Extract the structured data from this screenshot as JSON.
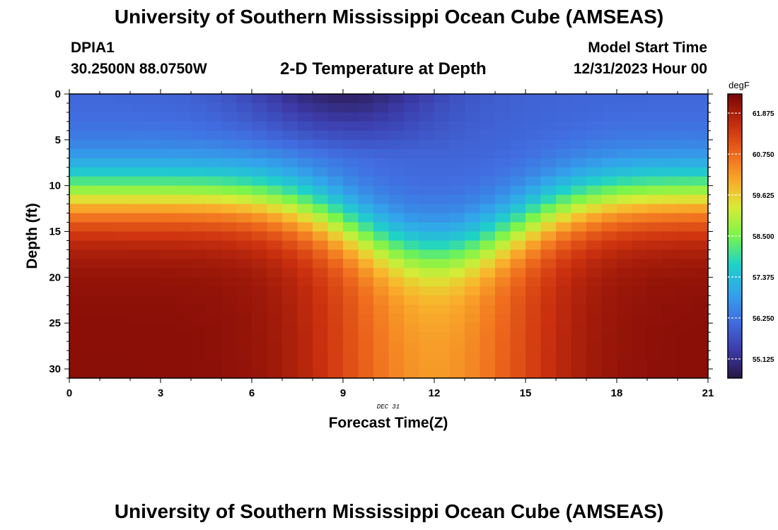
{
  "header": {
    "title": "University of Southern Mississippi Ocean Cube (AMSEAS)",
    "station": "DPIA1",
    "coords": "30.2500N  88.0750W",
    "plot_title": "2-D Temperature at Depth",
    "start_label": "Model Start Time",
    "start_value": "12/31/2023 Hour 00"
  },
  "footer": {
    "title": "University of Southern Mississippi Ocean Cube (AMSEAS)"
  },
  "chart_data": {
    "type": "heatmap",
    "title": "2-D Temperature at Depth",
    "xlabel": "Forecast Time(Z)",
    "ylabel": "Depth (ft)",
    "date_label": "DEC 31",
    "xlim": [
      0,
      21
    ],
    "ylim": [
      31,
      0
    ],
    "x_ticks": [
      0,
      3,
      6,
      9,
      12,
      15,
      18,
      21
    ],
    "y_ticks": [
      0,
      5,
      10,
      15,
      20,
      25,
      30
    ],
    "colorbar": {
      "unit": "degF",
      "range": [
        54.6,
        62.4
      ],
      "ticks": [
        "55.125",
        "56.250",
        "57.375",
        "58.500",
        "59.625",
        "60.750",
        "61.875"
      ]
    },
    "temperature_field": {
      "surface_max": 54.8,
      "surface_min_time": 9.0,
      "surface_ambient": 56.0,
      "bottom_ambient": 62.2,
      "bottom_trough": 60.2,
      "thermocline_depth_edges_ft": 11.0,
      "thermocline_depth_center_ft": 17.5,
      "trough_center_time": 12.0
    }
  }
}
